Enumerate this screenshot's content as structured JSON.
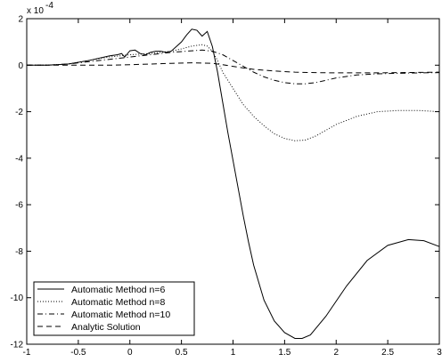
{
  "chart_data": {
    "type": "line",
    "title": "",
    "xlabel": "",
    "ylabel": "",
    "xlim": [
      -1,
      3
    ],
    "ylim": [
      -12,
      2
    ],
    "y_multiplier_label": "x 10",
    "y_multiplier_exponent": "-4",
    "x_ticks": [
      -1,
      -0.5,
      0,
      0.5,
      1,
      1.5,
      2,
      2.5,
      3
    ],
    "x_tick_labels": [
      "-1",
      "-0.5",
      "0",
      "0.5",
      "1",
      "1.5",
      "2",
      "2.5",
      "3"
    ],
    "y_ticks": [
      -12,
      -10,
      -8,
      -6,
      -4,
      -2,
      0,
      2
    ],
    "y_tick_labels": [
      "-12",
      "-10",
      "-8",
      "-6",
      "-4",
      "-2",
      "0",
      "2"
    ],
    "grid": false,
    "legend_position": "bottom-left",
    "series": [
      {
        "name": "Automatic Method n=6",
        "dash": "solid",
        "x": [
          -1.0,
          -0.8,
          -0.6,
          -0.4,
          -0.3,
          -0.2,
          -0.12,
          -0.08,
          -0.05,
          0.0,
          0.05,
          0.1,
          0.15,
          0.2,
          0.25,
          0.3,
          0.35,
          0.4,
          0.45,
          0.5,
          0.55,
          0.6,
          0.65,
          0.7,
          0.75,
          0.8,
          0.85,
          0.9,
          0.95,
          1.0,
          1.05,
          1.1,
          1.15,
          1.2,
          1.3,
          1.4,
          1.5,
          1.6,
          1.67,
          1.75,
          1.9,
          2.1,
          2.3,
          2.5,
          2.7,
          2.85,
          3.0
        ],
        "y": [
          0.0,
          0.0,
          0.05,
          0.2,
          0.3,
          0.4,
          0.45,
          0.5,
          0.35,
          0.62,
          0.65,
          0.5,
          0.45,
          0.55,
          0.6,
          0.6,
          0.55,
          0.6,
          0.8,
          1.0,
          1.3,
          1.55,
          1.5,
          1.25,
          1.45,
          0.8,
          -0.3,
          -1.6,
          -2.9,
          -4.1,
          -5.3,
          -6.5,
          -7.6,
          -8.6,
          -10.1,
          -11.0,
          -11.5,
          -11.75,
          -11.75,
          -11.6,
          -10.8,
          -9.5,
          -8.4,
          -7.75,
          -7.5,
          -7.55,
          -7.8
        ]
      },
      {
        "name": "Automatic Method n=8",
        "dash": "dotted",
        "x": [
          -1.0,
          -0.8,
          -0.6,
          -0.4,
          -0.2,
          0.0,
          0.2,
          0.4,
          0.5,
          0.6,
          0.7,
          0.75,
          0.8,
          0.85,
          0.9,
          1.0,
          1.1,
          1.2,
          1.3,
          1.4,
          1.5,
          1.6,
          1.7,
          1.8,
          1.9,
          2.0,
          2.2,
          2.4,
          2.6,
          2.8,
          3.0
        ],
        "y": [
          0.0,
          0.0,
          0.05,
          0.2,
          0.35,
          0.45,
          0.5,
          0.6,
          0.7,
          0.82,
          0.88,
          0.82,
          0.6,
          0.2,
          -0.3,
          -1.0,
          -1.7,
          -2.2,
          -2.6,
          -2.95,
          -3.15,
          -3.25,
          -3.22,
          -3.05,
          -2.8,
          -2.55,
          -2.2,
          -2.0,
          -1.95,
          -1.95,
          -2.0
        ]
      },
      {
        "name": "Automatic Method n=10",
        "dash": "dashdot",
        "x": [
          -1.0,
          -0.8,
          -0.6,
          -0.4,
          -0.2,
          0.0,
          0.2,
          0.4,
          0.6,
          0.7,
          0.8,
          0.9,
          1.0,
          1.1,
          1.2,
          1.3,
          1.4,
          1.5,
          1.6,
          1.7,
          1.8,
          1.9,
          2.0,
          2.2,
          2.4,
          2.6,
          2.8,
          3.0
        ],
        "y": [
          0.0,
          0.0,
          0.05,
          0.15,
          0.25,
          0.35,
          0.45,
          0.55,
          0.62,
          0.65,
          0.6,
          0.45,
          0.2,
          -0.05,
          -0.3,
          -0.5,
          -0.65,
          -0.75,
          -0.8,
          -0.8,
          -0.75,
          -0.65,
          -0.55,
          -0.42,
          -0.37,
          -0.35,
          -0.33,
          -0.32
        ]
      },
      {
        "name": "Analytic Solution",
        "dash": "dashed",
        "x": [
          -1.0,
          -0.6,
          -0.2,
          0.0,
          0.2,
          0.4,
          0.6,
          0.8,
          0.9,
          1.0,
          1.1,
          1.2,
          1.4,
          1.6,
          1.8,
          2.0,
          2.2,
          2.4,
          2.6,
          2.8,
          3.0
        ],
        "y": [
          0.0,
          0.0,
          0.0,
          0.02,
          0.05,
          0.08,
          0.1,
          0.08,
          0.02,
          -0.05,
          -0.12,
          -0.18,
          -0.25,
          -0.3,
          -0.32,
          -0.33,
          -0.33,
          -0.33,
          -0.32,
          -0.31,
          -0.3
        ]
      }
    ]
  }
}
